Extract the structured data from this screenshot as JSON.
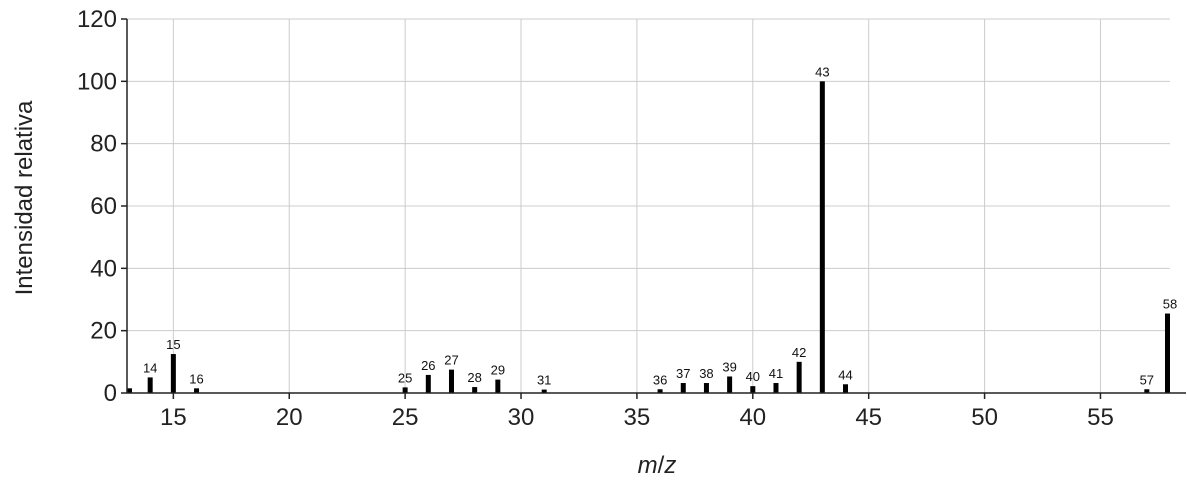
{
  "chart_data": {
    "type": "bar",
    "xlabel": "m/z",
    "ylabel": "Intensidad relativa",
    "xlim": [
      13,
      58
    ],
    "ylim": [
      0,
      120
    ],
    "xticks": [
      15,
      20,
      25,
      30,
      35,
      40,
      45,
      50,
      55
    ],
    "yticks": [
      0,
      20,
      40,
      60,
      80,
      100,
      120
    ],
    "grid": true,
    "bar_color": "#000000",
    "grid_color": "#cccccc",
    "peaks": [
      {
        "mz": 13,
        "intensity": 1.5,
        "label": ""
      },
      {
        "mz": 14,
        "intensity": 5,
        "label": "14"
      },
      {
        "mz": 15,
        "intensity": 12.5,
        "label": "15"
      },
      {
        "mz": 16,
        "intensity": 1.5,
        "label": "16"
      },
      {
        "mz": 25,
        "intensity": 1.8,
        "label": "25"
      },
      {
        "mz": 26,
        "intensity": 5.8,
        "label": "26"
      },
      {
        "mz": 27,
        "intensity": 7.5,
        "label": "27"
      },
      {
        "mz": 28,
        "intensity": 1.9,
        "label": "28"
      },
      {
        "mz": 29,
        "intensity": 4.3,
        "label": "29"
      },
      {
        "mz": 31,
        "intensity": 1.1,
        "label": "31"
      },
      {
        "mz": 36,
        "intensity": 1.2,
        "label": "36"
      },
      {
        "mz": 37,
        "intensity": 3.2,
        "label": "37"
      },
      {
        "mz": 38,
        "intensity": 3.2,
        "label": "38"
      },
      {
        "mz": 39,
        "intensity": 5.3,
        "label": "39"
      },
      {
        "mz": 40,
        "intensity": 2.2,
        "label": "40"
      },
      {
        "mz": 41,
        "intensity": 3.2,
        "label": "41"
      },
      {
        "mz": 42,
        "intensity": 10,
        "label": "42"
      },
      {
        "mz": 43,
        "intensity": 100,
        "label": "43"
      },
      {
        "mz": 44,
        "intensity": 2.8,
        "label": "44"
      },
      {
        "mz": 57,
        "intensity": 1.2,
        "label": "57"
      },
      {
        "mz": 58,
        "intensity": 25.5,
        "label": "58"
      }
    ]
  }
}
